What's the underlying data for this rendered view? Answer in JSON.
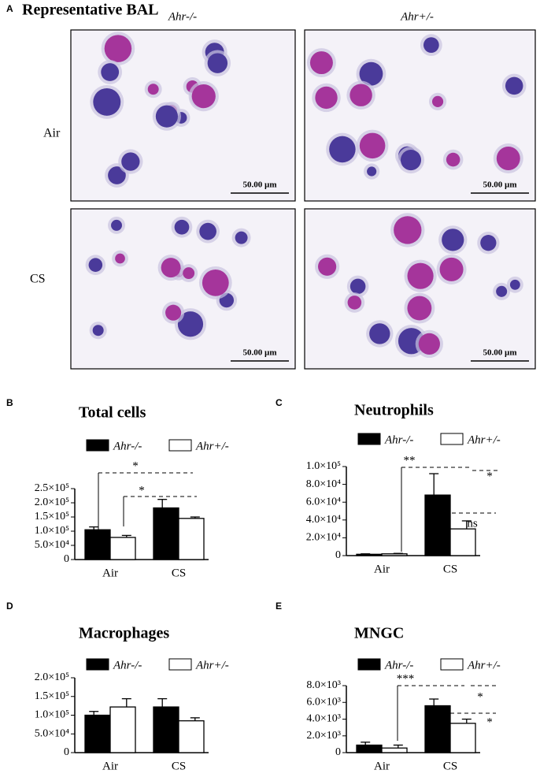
{
  "panel_a": {
    "panel_label": "A",
    "title": "Representative BAL",
    "columns": [
      "Ahr-/-",
      "Ahr+/-"
    ],
    "rows": [
      "Air",
      "CS"
    ],
    "scale_bar": "50.00 µm"
  },
  "chart_data": [
    {
      "type": "bar",
      "panel_label": "B",
      "title": "Total cells",
      "categories": [
        "Air",
        "CS"
      ],
      "series": [
        {
          "name": "Ahr-/-",
          "color": "#000000",
          "values": [
            105000,
            182000
          ],
          "errors": [
            10000,
            30000
          ]
        },
        {
          "name": "Ahr+/-",
          "color": "#ffffff",
          "values": [
            78000,
            145000
          ],
          "errors": [
            7000,
            5000
          ]
        }
      ],
      "ylim": [
        0,
        250000
      ],
      "yticks": [
        0,
        {
          "value": 50000,
          "label": "5.0×10⁴"
        },
        {
          "value": 100000,
          "label": "1.0×10⁵"
        },
        {
          "value": 150000,
          "label": "1.5×10⁵"
        },
        {
          "value": 200000,
          "label": "2.0×10⁵"
        },
        {
          "value": 250000,
          "label": "2.5×10⁵"
        }
      ],
      "annotations": [
        "*",
        "*"
      ]
    },
    {
      "type": "bar",
      "panel_label": "C",
      "title": "Neutrophils",
      "categories": [
        "Air",
        "CS"
      ],
      "series": [
        {
          "name": "Ahr-/-",
          "color": "#000000",
          "values": [
            1500,
            68000
          ],
          "errors": [
            500,
            24000
          ]
        },
        {
          "name": "Ahr+/-",
          "color": "#ffffff",
          "values": [
            2000,
            30000
          ],
          "errors": [
            500,
            9000
          ]
        }
      ],
      "ylim": [
        0,
        100000
      ],
      "yticks": [
        0,
        {
          "value": 20000,
          "label": "2.0×10⁴"
        },
        {
          "value": 40000,
          "label": "4.0×10⁴"
        },
        {
          "value": 60000,
          "label": "6.0×10⁴"
        },
        {
          "value": 80000,
          "label": "8.0×10⁴"
        },
        {
          "value": 100000,
          "label": "1.0×10⁵"
        }
      ],
      "annotations": [
        "**",
        "*",
        "ns"
      ]
    },
    {
      "type": "bar",
      "panel_label": "D",
      "title": "Macrophages",
      "categories": [
        "Air",
        "CS"
      ],
      "series": [
        {
          "name": "Ahr-/-",
          "color": "#000000",
          "values": [
            100000,
            122000
          ],
          "errors": [
            10000,
            22000
          ]
        },
        {
          "name": "Ahr+/-",
          "color": "#ffffff",
          "values": [
            122000,
            85000
          ],
          "errors": [
            22000,
            8000
          ]
        }
      ],
      "ylim": [
        0,
        200000
      ],
      "yticks": [
        0,
        {
          "value": 50000,
          "label": "5.0×10⁴"
        },
        {
          "value": 100000,
          "label": "1.0×10⁵"
        },
        {
          "value": 150000,
          "label": "1.5×10⁵"
        },
        {
          "value": 200000,
          "label": "2.0×10⁵"
        }
      ],
      "annotations": []
    },
    {
      "type": "bar",
      "panel_label": "E",
      "title": "MNGC",
      "categories": [
        "Air",
        "CS"
      ],
      "series": [
        {
          "name": "Ahr-/-",
          "color": "#000000",
          "values": [
            900,
            5600
          ],
          "errors": [
            350,
            800
          ]
        },
        {
          "name": "Ahr+/-",
          "color": "#ffffff",
          "values": [
            550,
            3500
          ],
          "errors": [
            350,
            500
          ]
        }
      ],
      "ylim": [
        0,
        8000
      ],
      "yticks": [
        0,
        {
          "value": 2000,
          "label": "2.0×10³"
        },
        {
          "value": 4000,
          "label": "4.0×10³"
        },
        {
          "value": 6000,
          "label": "6.0×10³"
        },
        {
          "value": 8000,
          "label": "8.0×10³"
        }
      ],
      "annotations": [
        "***",
        "*",
        "*"
      ]
    }
  ]
}
